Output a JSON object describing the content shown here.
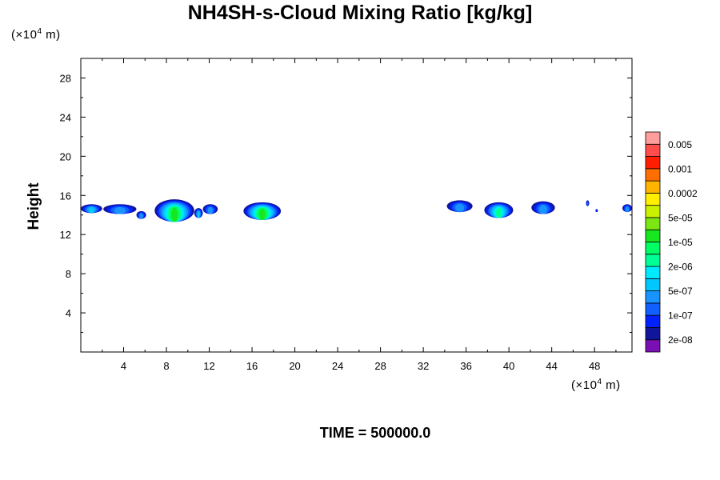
{
  "chart_data": {
    "type": "heatmap",
    "title": "NH4SH-s-Cloud Mixing Ratio [kg/kg]",
    "ylabel": "Height",
    "x_unit": "(×10⁴ m)",
    "y_unit": "(×10⁴ m)",
    "xlim": [
      0,
      51.5
    ],
    "ylim": [
      0,
      30
    ],
    "x_ticks": [
      4,
      8,
      12,
      16,
      20,
      24,
      28,
      32,
      36,
      40,
      44,
      48
    ],
    "y_ticks": [
      4,
      8,
      12,
      16,
      20,
      24,
      28
    ],
    "colorbar": {
      "colors": [
        "#7a0fb4",
        "#10159c",
        "#0022ff",
        "#1060ff",
        "#1893ff",
        "#00c8ff",
        "#00eaff",
        "#00ff96",
        "#00ff64",
        "#18e61e",
        "#7be612",
        "#cbf000",
        "#fff000",
        "#ffb400",
        "#ff6e00",
        "#ff1e00",
        "#ff4c4c",
        "#ff9c9c"
      ],
      "labels": [
        "2e-08",
        "1e-07",
        "5e-07",
        "2e-06",
        "1e-05",
        "5e-05",
        "0.0002",
        "0.001",
        "0.005"
      ]
    },
    "cloud_regions": [
      {
        "x": [
          0,
          2
        ],
        "y": [
          14.2,
          15.1
        ],
        "peak_level": 5
      },
      {
        "x": [
          2.1,
          5.2
        ],
        "y": [
          14.1,
          15.1
        ],
        "peak_level": 4
      },
      {
        "x": [
          5.2,
          6.1
        ],
        "y": [
          13.6,
          14.4
        ],
        "peak_level": 4
      },
      {
        "x": [
          6.9,
          10.6
        ],
        "y": [
          13.3,
          15.6
        ],
        "peak_level": 9
      },
      {
        "x": [
          10.6,
          11.4
        ],
        "y": [
          13.7,
          14.7
        ],
        "peak_level": 5
      },
      {
        "x": [
          11.4,
          12.8
        ],
        "y": [
          14.1,
          15.1
        ],
        "peak_level": 4
      },
      {
        "x": [
          15.2,
          18.7
        ],
        "y": [
          13.5,
          15.3
        ],
        "peak_level": 9
      },
      {
        "x": [
          34.2,
          36.6
        ],
        "y": [
          14.3,
          15.5
        ],
        "peak_level": 4
      },
      {
        "x": [
          37.7,
          40.4
        ],
        "y": [
          13.7,
          15.3
        ],
        "peak_level": 7
      },
      {
        "x": [
          42.1,
          44.3
        ],
        "y": [
          14.1,
          15.4
        ],
        "peak_level": 4
      },
      {
        "x": [
          47.2,
          47.5
        ],
        "y": [
          14.9,
          15.5
        ],
        "peak_level": 3
      },
      {
        "x": [
          48.1,
          48.3
        ],
        "y": [
          14.3,
          14.6
        ],
        "peak_level": 2
      },
      {
        "x": [
          50.6,
          51.5
        ],
        "y": [
          14.3,
          15.1
        ],
        "peak_level": 4
      }
    ]
  },
  "footer": {
    "time_label": "TIME = 500000.0"
  }
}
